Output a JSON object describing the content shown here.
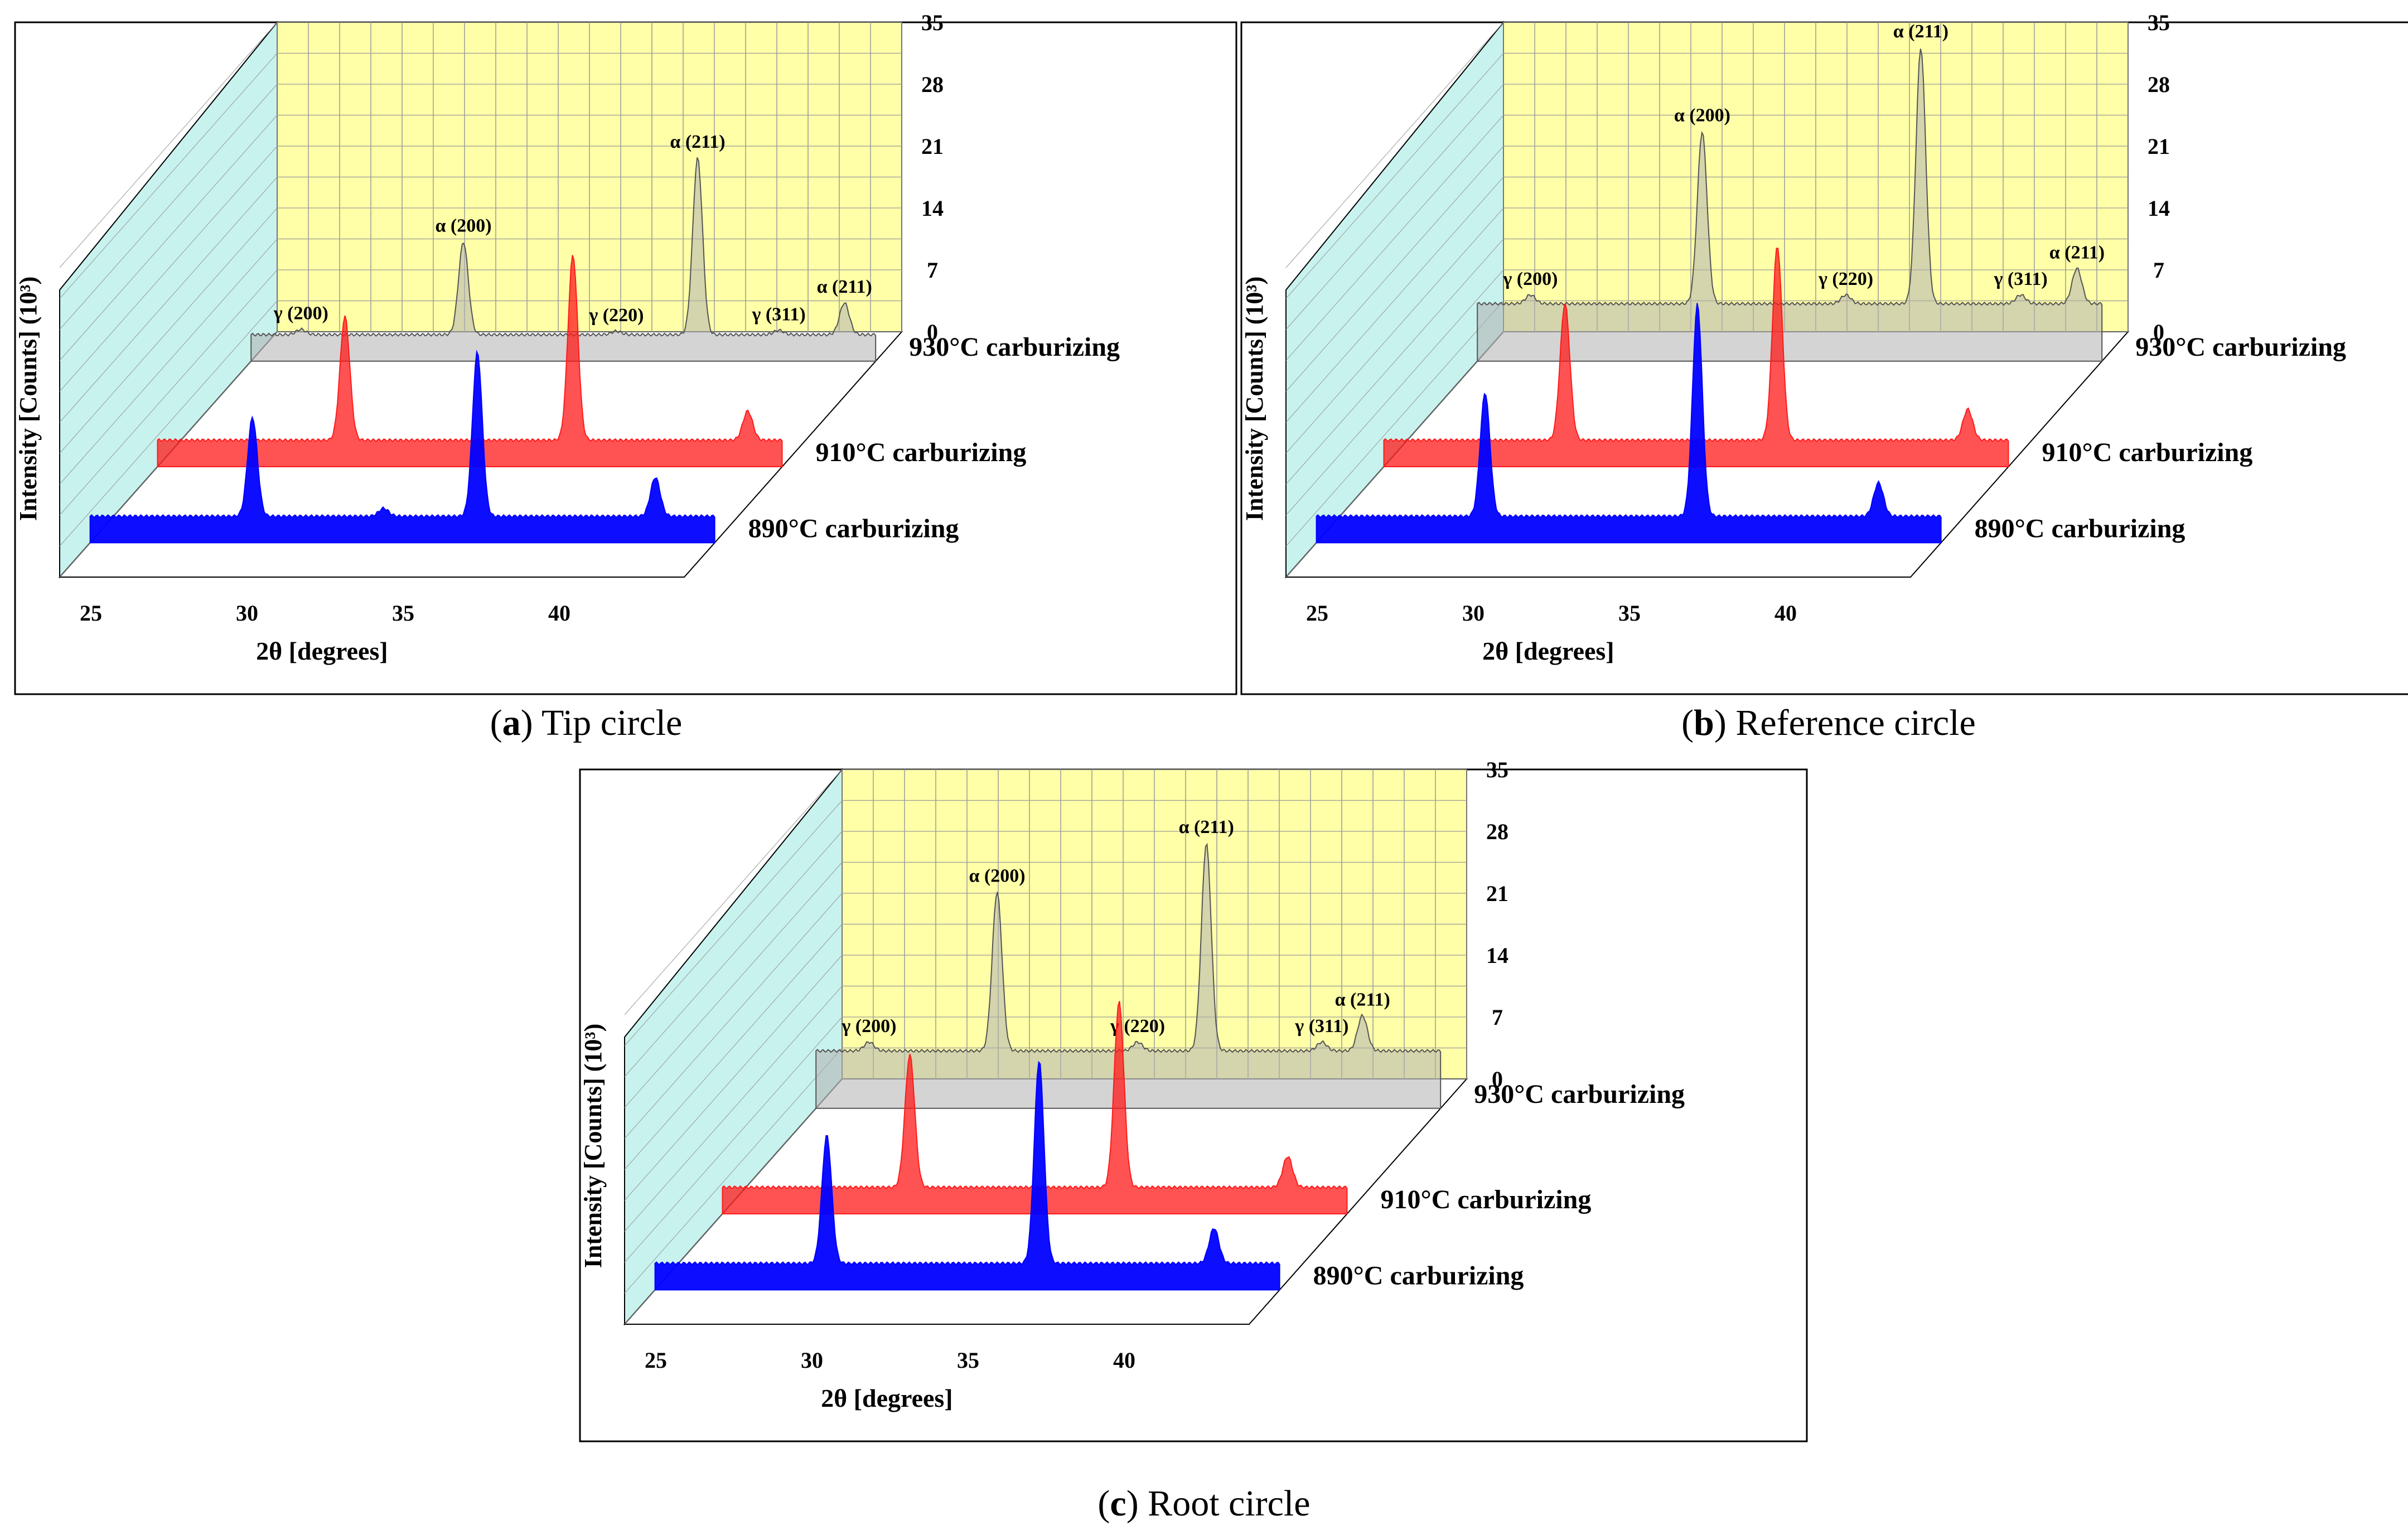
{
  "figure": {
    "panels": [
      {
        "letter": "a",
        "caption": "Tip circle"
      },
      {
        "letter": "b",
        "caption": "Reference circle"
      },
      {
        "letter": "c",
        "caption": "Root circle"
      }
    ]
  },
  "colors": {
    "back_wall": "#ffffa8",
    "side_wall": "#c8f2ee",
    "floor": "#ffffff",
    "grid": "#9a9a9a",
    "frame": "#000000",
    "series_930": "#b0b0b0",
    "series_910": "#ff1a1a",
    "series_890": "#0000ff"
  },
  "chart_data": [
    {
      "type": "area",
      "panel": "a",
      "title": "(a) Tip circle",
      "xlabel": "2θ [degrees]",
      "ylabel": "Intensity [Counts] (10³)",
      "xlim": [
        24,
        44
      ],
      "ylim": [
        0,
        35
      ],
      "x_ticks": [
        25,
        30,
        35,
        40
      ],
      "y_ticks": [
        0,
        7,
        14,
        21,
        28,
        35
      ],
      "grid": true,
      "series": [
        {
          "name": "930°C carburizing",
          "baseline": 3.0,
          "peaks": [
            {
              "label": "γ (200)",
              "x": 25.6,
              "height": 0.6,
              "labeled": true
            },
            {
              "label": "α (200)",
              "x": 30.8,
              "height": 10.5,
              "labeled": true
            },
            {
              "label": "γ (220)",
              "x": 35.7,
              "height": 0.4,
              "labeled": true
            },
            {
              "label": "α (211)",
              "x": 38.3,
              "height": 20.0,
              "labeled": true
            },
            {
              "label": "γ (311)",
              "x": 40.9,
              "height": 0.5,
              "labeled": true
            },
            {
              "label": "α (211)",
              "x": 43.0,
              "height": 3.6,
              "labeled": true
            }
          ]
        },
        {
          "name": "910°C carburizing",
          "baseline": 3.0,
          "peaks": [
            {
              "label": "",
              "x": 30.0,
              "height": 14.0,
              "labeled": false
            },
            {
              "label": "",
              "x": 37.3,
              "height": 21.0,
              "labeled": false
            },
            {
              "label": "",
              "x": 42.9,
              "height": 3.3,
              "labeled": false
            }
          ]
        },
        {
          "name": "890°C carburizing",
          "baseline": 3.0,
          "peaks": [
            {
              "label": "",
              "x": 29.2,
              "height": 11.2,
              "labeled": false
            },
            {
              "label": "",
              "x": 33.4,
              "height": 0.9,
              "labeled": false
            },
            {
              "label": "",
              "x": 36.4,
              "height": 18.6,
              "labeled": false
            },
            {
              "label": "",
              "x": 42.1,
              "height": 4.4,
              "labeled": false
            }
          ]
        }
      ]
    },
    {
      "type": "area",
      "panel": "b",
      "title": "(b) Reference circle",
      "xlabel": "2θ [degrees]",
      "ylabel": "Intensity [Counts] (10³)",
      "xlim": [
        24,
        44
      ],
      "ylim": [
        0,
        35
      ],
      "x_ticks": [
        25,
        30,
        35,
        40
      ],
      "y_ticks": [
        0,
        7,
        14,
        21,
        28,
        35
      ],
      "grid": true,
      "series": [
        {
          "name": "930°C carburizing",
          "baseline": 6.5,
          "peaks": [
            {
              "label": "γ (200)",
              "x": 25.7,
              "height": 1.0,
              "labeled": true
            },
            {
              "label": "α (200)",
              "x": 31.2,
              "height": 19.5,
              "labeled": true
            },
            {
              "label": "γ (220)",
              "x": 35.8,
              "height": 1.0,
              "labeled": true
            },
            {
              "label": "α (211)",
              "x": 38.2,
              "height": 29.0,
              "labeled": true
            },
            {
              "label": "γ (311)",
              "x": 41.4,
              "height": 1.0,
              "labeled": true
            },
            {
              "label": "α (211)",
              "x": 43.2,
              "height": 4.0,
              "labeled": true
            }
          ]
        },
        {
          "name": "910°C carburizing",
          "baseline": 3.0,
          "peaks": [
            {
              "label": "",
              "x": 29.8,
              "height": 15.5,
              "labeled": false
            },
            {
              "label": "",
              "x": 36.6,
              "height": 22.0,
              "labeled": false
            },
            {
              "label": "",
              "x": 42.7,
              "height": 3.5,
              "labeled": false
            }
          ]
        },
        {
          "name": "890°C carburizing",
          "baseline": 3.0,
          "peaks": [
            {
              "label": "",
              "x": 29.4,
              "height": 14.0,
              "labeled": false
            },
            {
              "label": "",
              "x": 36.2,
              "height": 24.0,
              "labeled": false
            },
            {
              "label": "",
              "x": 42.0,
              "height": 3.8,
              "labeled": false
            }
          ]
        }
      ]
    },
    {
      "type": "area",
      "panel": "c",
      "title": "(c) Root circle",
      "xlabel": "2θ [degrees]",
      "ylabel": "Intensity [Counts] (10³)",
      "xlim": [
        24,
        44
      ],
      "ylim": [
        0,
        35
      ],
      "x_ticks": [
        25,
        30,
        35,
        40
      ],
      "y_ticks": [
        0,
        7,
        14,
        21,
        28,
        35
      ],
      "grid": true,
      "series": [
        {
          "name": "930°C carburizing",
          "baseline": 6.5,
          "peaks": [
            {
              "label": "γ (200)",
              "x": 25.7,
              "height": 1.0,
              "labeled": true
            },
            {
              "label": "α (200)",
              "x": 29.8,
              "height": 18.0,
              "labeled": true
            },
            {
              "label": "γ (220)",
              "x": 34.3,
              "height": 1.0,
              "labeled": true
            },
            {
              "label": "α (211)",
              "x": 36.5,
              "height": 23.5,
              "labeled": true
            },
            {
              "label": "γ (311)",
              "x": 40.2,
              "height": 1.0,
              "labeled": true
            },
            {
              "label": "α (211)",
              "x": 41.5,
              "height": 4.0,
              "labeled": true
            }
          ]
        },
        {
          "name": "910°C carburizing",
          "baseline": 3.0,
          "peaks": [
            {
              "label": "",
              "x": 30.0,
              "height": 15.0,
              "labeled": false
            },
            {
              "label": "",
              "x": 36.7,
              "height": 21.0,
              "labeled": false
            },
            {
              "label": "",
              "x": 42.1,
              "height": 3.5,
              "labeled": false
            }
          ]
        },
        {
          "name": "890°C carburizing",
          "baseline": 3.0,
          "peaks": [
            {
              "label": "",
              "x": 29.5,
              "height": 14.5,
              "labeled": false
            },
            {
              "label": "",
              "x": 36.3,
              "height": 23.0,
              "labeled": false
            },
            {
              "label": "",
              "x": 41.9,
              "height": 4.0,
              "labeled": false
            }
          ]
        }
      ]
    }
  ]
}
